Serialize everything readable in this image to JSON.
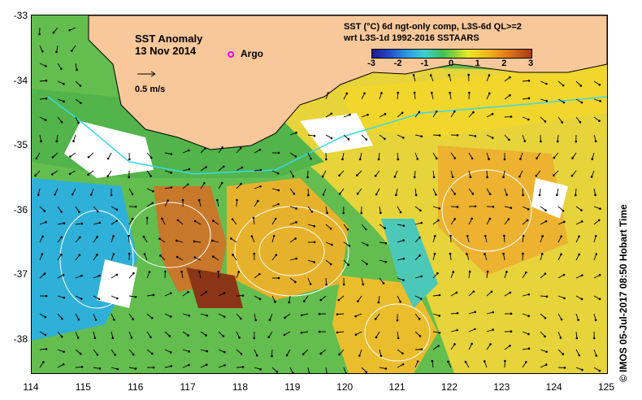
{
  "map": {
    "title": "SST Anomaly",
    "date": "13 Nov 2014",
    "argo_label": "Argo",
    "scale_label": "0.5 m/s",
    "credit": "© IMOS 05-Jul-2017 08:50 Hobart Time",
    "lon_ticks": [
      "114",
      "115",
      "116",
      "117",
      "118",
      "119",
      "120",
      "121",
      "122",
      "123",
      "124",
      "125"
    ],
    "lat_ticks": [
      "-33",
      "-34",
      "-35",
      "-36",
      "-37",
      "-38"
    ],
    "colors": {
      "land": "#f8c89a",
      "ocean_mid": "#58b85a",
      "warm": "#f4c020",
      "hot": "#a63a17",
      "cool": "#3ec8d6",
      "current": "#3ad8e8"
    }
  },
  "colorbar": {
    "title_line1": "SST (°C) 6d ngt-only comp, L3S-6d QL>=2",
    "title_line2": "wrt L3S-1d 1992-2016 SSTAARS",
    "ticks": [
      "-3",
      "-2",
      "-1",
      "0",
      "1",
      "2",
      "3"
    ]
  }
}
